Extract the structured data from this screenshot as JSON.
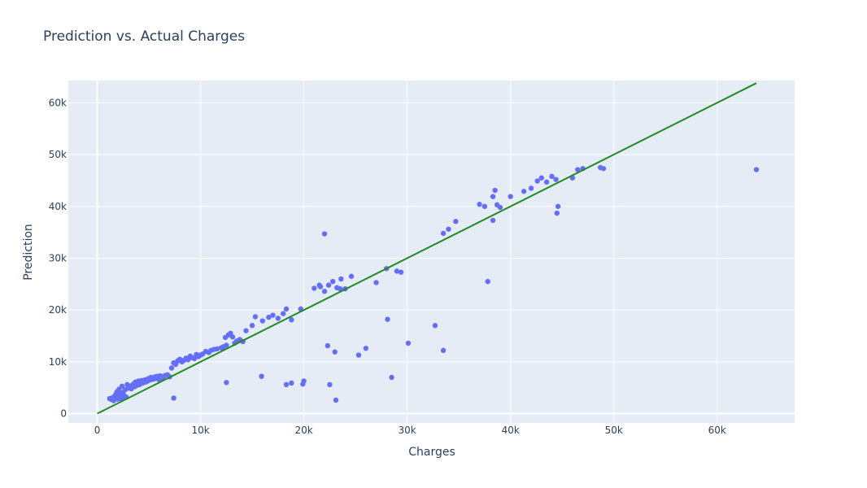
{
  "chart_data": {
    "type": "scatter",
    "title": "Prediction vs. Actual Charges",
    "xlabel": "Charges",
    "ylabel": "Prediction",
    "xlim": [
      -2800,
      67500
    ],
    "ylim": [
      -1800,
      64300
    ],
    "x_ticks": [
      {
        "value": 0,
        "label": "0"
      },
      {
        "value": 10000,
        "label": "10k"
      },
      {
        "value": 20000,
        "label": "20k"
      },
      {
        "value": 30000,
        "label": "30k"
      },
      {
        "value": 40000,
        "label": "40k"
      },
      {
        "value": 50000,
        "label": "50k"
      },
      {
        "value": 60000,
        "label": "60k"
      }
    ],
    "y_ticks": [
      {
        "value": 0,
        "label": "0"
      },
      {
        "value": 10000,
        "label": "10k"
      },
      {
        "value": 20000,
        "label": "20k"
      },
      {
        "value": 30000,
        "label": "30k"
      },
      {
        "value": 40000,
        "label": "40k"
      },
      {
        "value": 50000,
        "label": "50k"
      },
      {
        "value": 60000,
        "label": "60k"
      }
    ],
    "grid": true,
    "colors": {
      "points": "#636efa",
      "line": "#1f8c1f",
      "plot_bg": "#e5ecf6",
      "grid": "#ffffff",
      "text": "#2a3f5f"
    },
    "reference_line": {
      "x": [
        0,
        63800
      ],
      "y": [
        0,
        63800
      ]
    },
    "points": {
      "x": [
        1200,
        1400,
        1500,
        1600,
        1700,
        1800,
        1900,
        2000,
        2100,
        2200,
        2300,
        2400,
        2500,
        2600,
        2700,
        2800,
        2900,
        3000,
        3100,
        3200,
        3300,
        3400,
        3500,
        3600,
        3700,
        3800,
        3900,
        4000,
        4100,
        4200,
        4300,
        4400,
        4500,
        4600,
        4700,
        4800,
        4900,
        5000,
        5100,
        5200,
        5300,
        5400,
        5500,
        5600,
        5700,
        5800,
        5900,
        6000,
        6100,
        6200,
        6300,
        6400,
        6600,
        6800,
        7000,
        7200,
        7400,
        7600,
        7800,
        8000,
        8200,
        8400,
        8600,
        8800,
        9000,
        9200,
        9400,
        9600,
        9800,
        10000,
        10200,
        10500,
        10800,
        11000,
        11300,
        11600,
        12000,
        12200,
        12400,
        12500,
        12700,
        12900,
        13100,
        13300,
        13500,
        13800,
        14100,
        14400,
        15000,
        15300,
        16000,
        16600,
        17000,
        17500,
        18000,
        18300,
        18800,
        19700,
        21000,
        21600,
        22000,
        22400,
        22800,
        23200,
        23600,
        24000,
        24600,
        21500,
        22000,
        23500,
        27000,
        28000,
        29000,
        29400,
        33500,
        34000,
        34700,
        37000,
        37500,
        38300,
        38500,
        38700,
        39000,
        40000,
        41300,
        42000,
        42600,
        43000,
        43500,
        44000,
        44400,
        46000,
        46500,
        47000,
        48700,
        49000,
        37800,
        38300,
        44500,
        44600,
        63800,
        2400,
        7400,
        12500,
        15900,
        18300,
        18800,
        19900,
        20000,
        22300,
        22500,
        23000,
        23100,
        25300,
        26000,
        28100,
        28500,
        30100,
        32700,
        33500
      ],
      "y": [
        2900,
        2700,
        3100,
        2500,
        3400,
        3700,
        4200,
        2800,
        4700,
        3300,
        3900,
        5300,
        4100,
        3500,
        4600,
        3200,
        5600,
        4900,
        5100,
        5300,
        4800,
        5500,
        5700,
        5200,
        6100,
        5400,
        5800,
        6300,
        5600,
        6000,
        6400,
        5900,
        6200,
        6500,
        6100,
        6600,
        6300,
        6800,
        6500,
        7000,
        6600,
        6900,
        6700,
        7100,
        6800,
        7200,
        6900,
        6500,
        7300,
        7000,
        7100,
        6800,
        7400,
        7500,
        7100,
        8800,
        9800,
        9500,
        10200,
        10500,
        10000,
        10300,
        10700,
        10400,
        11100,
        10800,
        10600,
        11400,
        11000,
        11300,
        11500,
        12000,
        11800,
        12200,
        12400,
        12500,
        12700,
        12900,
        14700,
        13200,
        15200,
        15500,
        14800,
        13600,
        14000,
        14300,
        13900,
        16000,
        17000,
        18700,
        17900,
        18600,
        19000,
        18400,
        19300,
        20200,
        18100,
        20200,
        24200,
        24500,
        23600,
        24800,
        25500,
        24300,
        26000,
        24100,
        26500,
        24800,
        34700,
        24100,
        25300,
        28000,
        27500,
        27300,
        34800,
        35600,
        37100,
        40400,
        40000,
        41900,
        43100,
        40300,
        39800,
        41900,
        42900,
        43500,
        44900,
        45500,
        44700,
        45800,
        45200,
        45500,
        47100,
        47300,
        47500,
        47300,
        25500,
        37300,
        38700,
        40000,
        47100,
        2800,
        3000,
        6000,
        7200,
        5600,
        5900,
        5700,
        6300,
        13100,
        5600,
        11900,
        2600,
        11300,
        12600,
        18200,
        7000,
        13600,
        17000,
        12200
      ]
    }
  }
}
